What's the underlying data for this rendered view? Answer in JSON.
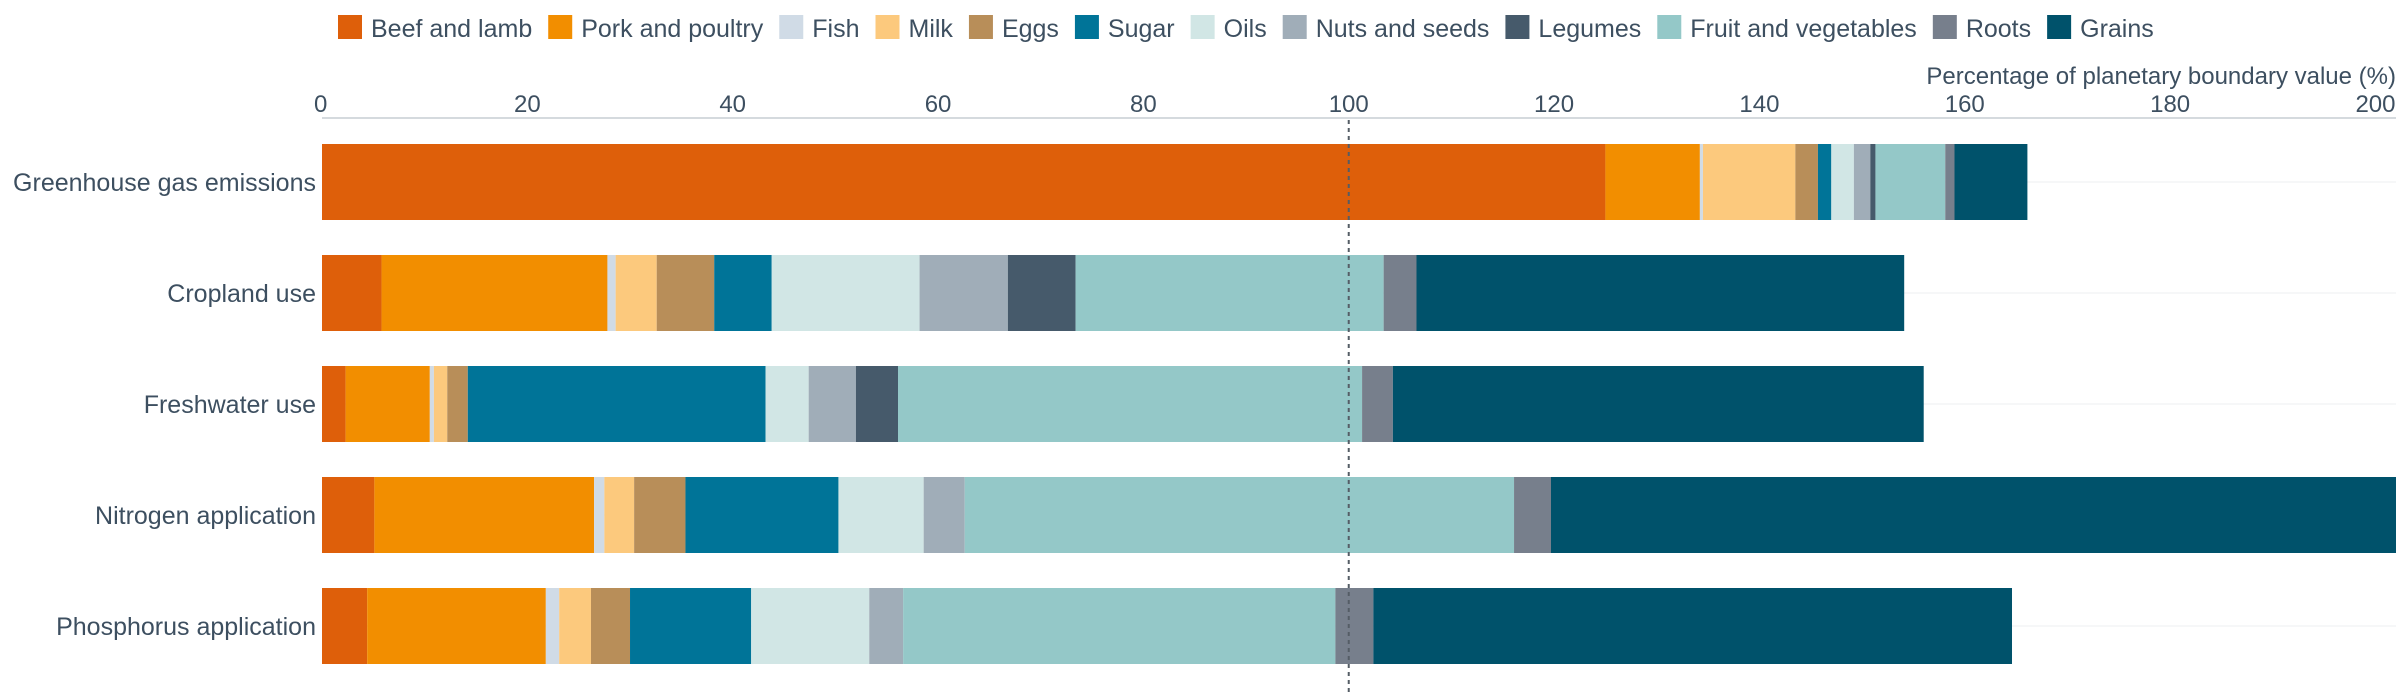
{
  "chart_data": {
    "type": "bar",
    "orientation": "horizontal",
    "stacked": true,
    "xlabel": "Percentage of planetary boundary value (%)",
    "xlim": [
      0,
      202
    ],
    "xticks": [
      0,
      20,
      40,
      60,
      80,
      100,
      120,
      140,
      160,
      180,
      200
    ],
    "reference_line": 100,
    "legend_position": "top",
    "categories": [
      "Greenhouse gas emissions",
      "Cropland use",
      "Freshwater use",
      "Nitrogen application",
      "Phosphorus application"
    ],
    "series": [
      {
        "name": "Beef and lamb",
        "color": "#de5f0a",
        "values": [
          125.0,
          5.8,
          2.3,
          5.1,
          4.4
        ]
      },
      {
        "name": "Pork and poultry",
        "color": "#f28e00",
        "values": [
          9.2,
          22.0,
          8.2,
          21.4,
          17.4
        ]
      },
      {
        "name": "Fish",
        "color": "#d0dbe6",
        "values": [
          0.3,
          0.8,
          0.4,
          1.0,
          1.3
        ]
      },
      {
        "name": "Milk",
        "color": "#fcc97d",
        "values": [
          9.0,
          4.0,
          1.3,
          2.9,
          3.1
        ]
      },
      {
        "name": "Eggs",
        "color": "#b88e59",
        "values": [
          2.2,
          5.6,
          2.0,
          5.0,
          3.8
        ]
      },
      {
        "name": "Sugar",
        "color": "#007498",
        "values": [
          1.3,
          5.6,
          29.0,
          14.9,
          11.8
        ]
      },
      {
        "name": "Oils",
        "color": "#d1e6e5",
        "values": [
          2.2,
          14.4,
          4.2,
          8.3,
          11.5
        ]
      },
      {
        "name": "Nuts and seeds",
        "color": "#a0adb8",
        "values": [
          1.6,
          8.6,
          4.6,
          4.0,
          3.3
        ]
      },
      {
        "name": "Legumes",
        "color": "#465a6b",
        "values": [
          0.5,
          6.6,
          4.1,
          0.0,
          0.0
        ]
      },
      {
        "name": "Fruit and vegetables",
        "color": "#94c8c8",
        "values": [
          6.8,
          30.0,
          45.2,
          53.5,
          42.1
        ]
      },
      {
        "name": "Roots",
        "color": "#777f8c",
        "values": [
          0.9,
          3.2,
          3.0,
          3.6,
          3.7
        ]
      },
      {
        "name": "Grains",
        "color": "#00526b",
        "values": [
          7.1,
          47.5,
          51.7,
          82.3,
          62.2
        ]
      }
    ]
  }
}
